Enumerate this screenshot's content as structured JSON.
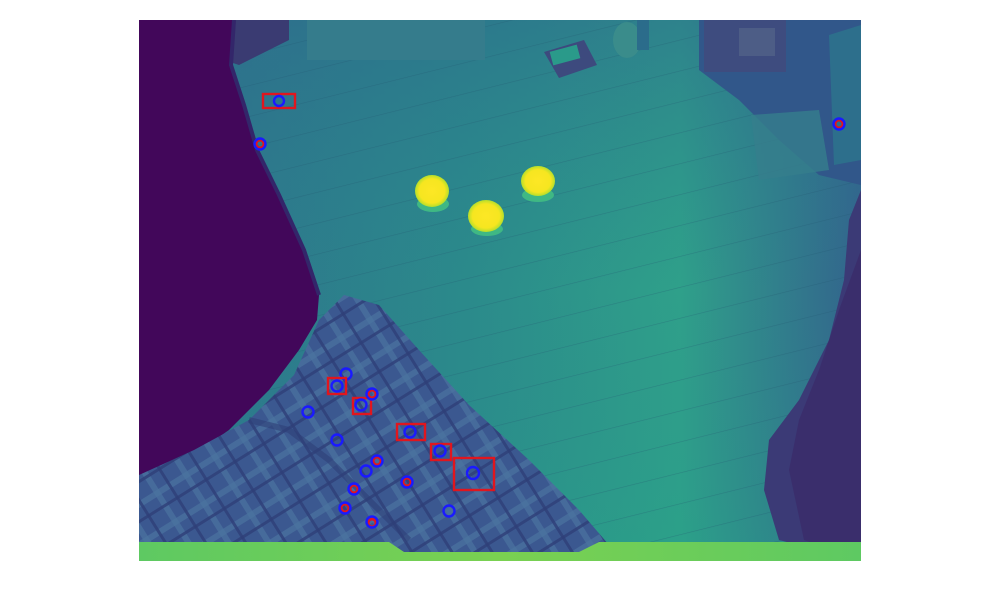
{
  "image": {
    "colormap": "viridis",
    "background_color": "#ffffff",
    "palette": {
      "darkest": "#440154",
      "dark": "#3b2f6b",
      "mid_dark": "#35608d",
      "mid": "#2a788e",
      "mid_light": "#21a585",
      "light": "#5ec962",
      "brightest": "#fde725"
    }
  },
  "features": {
    "circle_color": "#1a1aff",
    "box_color": "#e0161e"
  }
}
